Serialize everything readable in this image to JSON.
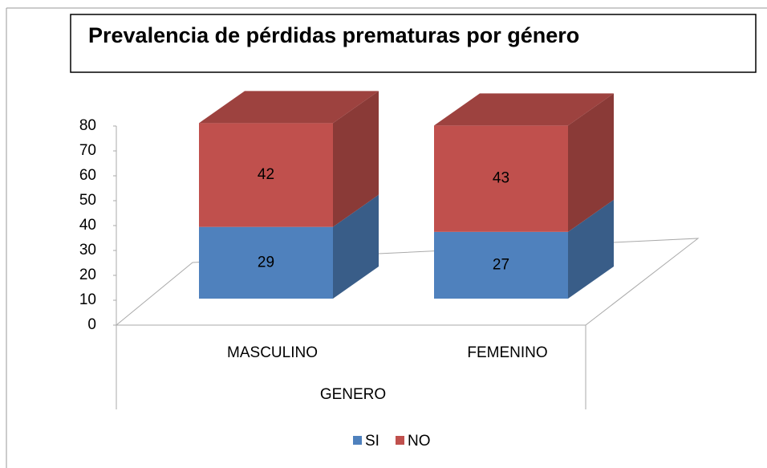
{
  "chart_data": {
    "type": "bar3d_stacked",
    "title": "Prevalencia de pérdidas prematuras por género",
    "categories": [
      "MASCULINO",
      "FEMENINO"
    ],
    "x_label": "GENERO",
    "series": [
      {
        "name": "SI",
        "color": "#4f81bd",
        "values": [
          29,
          27
        ]
      },
      {
        "name": "NO",
        "color": "#c0504d",
        "values": [
          42,
          43
        ]
      }
    ],
    "ylim": [
      0,
      80
    ],
    "yticks": [
      0,
      10,
      20,
      30,
      40,
      50,
      60,
      70,
      80
    ],
    "legend": "bottom"
  }
}
